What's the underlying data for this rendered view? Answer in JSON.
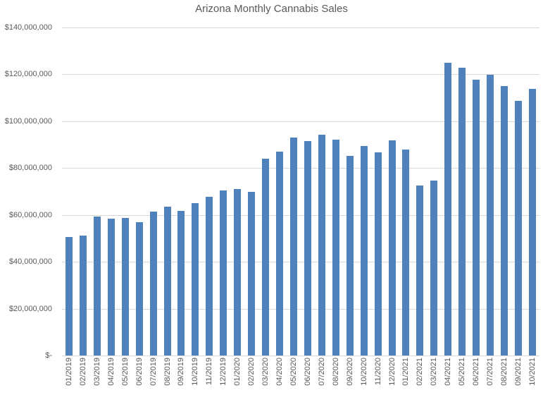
{
  "title": "Arizona Monthly Cannabis Sales",
  "colors": {
    "bar": "#4f81bd",
    "gridline": "#d9d9d9",
    "axis_line": "#d9d9d9",
    "text": "#595959",
    "background": "#ffffff"
  },
  "chart_data": {
    "type": "bar",
    "title": "Arizona Monthly Cannabis Sales",
    "xlabel": "",
    "ylabel": "",
    "grid": true,
    "legend": false,
    "ylim": [
      0,
      140000000
    ],
    "y_ticks": [
      {
        "value": 0,
        "label": "$-"
      },
      {
        "value": 20000000,
        "label": "$20,000,000"
      },
      {
        "value": 40000000,
        "label": "$40,000,000"
      },
      {
        "value": 60000000,
        "label": "$60,000,000"
      },
      {
        "value": 80000000,
        "label": "$80,000,000"
      },
      {
        "value": 100000000,
        "label": "$100,000,000"
      },
      {
        "value": 120000000,
        "label": "$120,000,000"
      },
      {
        "value": 140000000,
        "label": "$140,000,000"
      }
    ],
    "categories": [
      "01/2019",
      "02/2019",
      "03/2019",
      "04/2019",
      "05/2019",
      "06/2019",
      "07/2019",
      "08/2019",
      "09/2019",
      "10/2019",
      "11/2019",
      "12/2019",
      "01/2020",
      "02/2020",
      "03/2020",
      "04/2020",
      "05/2020",
      "06/2020",
      "07/2020",
      "08/2020",
      "09/2020",
      "10/2020",
      "11/2020",
      "12/2020",
      "01/2021",
      "02/2021",
      "03/2021",
      "04/2021",
      "05/2021",
      "06/2021",
      "07/2021",
      "08/2021",
      "09/2021",
      "10/2021"
    ],
    "values": [
      50700000,
      51200000,
      59400000,
      58300000,
      58800000,
      56800000,
      61300000,
      63400000,
      61700000,
      65000000,
      67700000,
      70600000,
      71000000,
      69800000,
      83900000,
      87000000,
      93100000,
      91500000,
      94100000,
      92100000,
      85300000,
      89300000,
      86600000,
      91800000,
      87800000,
      72600000,
      74600000,
      124900000,
      122900000,
      117700000,
      119900000,
      114900000,
      108700000,
      113900000
    ]
  }
}
